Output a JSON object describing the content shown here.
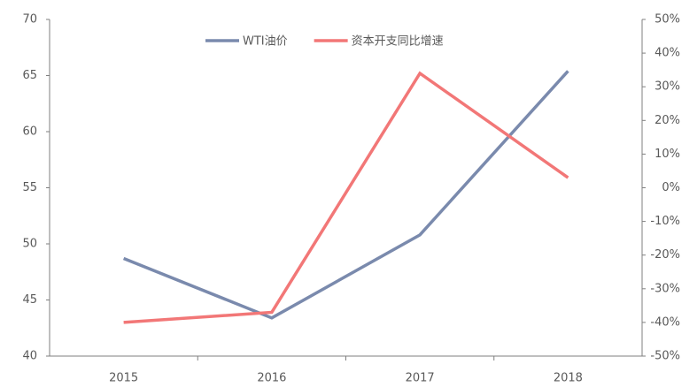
{
  "chart_data": {
    "type": "line",
    "categories": [
      "2015",
      "2016",
      "2017",
      "2018"
    ],
    "series": [
      {
        "name": "WTI油价",
        "color": "#7a8aad",
        "values": [
          48.7,
          43.4,
          50.8,
          65.4
        ]
      },
      {
        "name": "资本开支同比增速",
        "color": "#f27777",
        "axis": "y2",
        "values": [
          -40,
          -37,
          34,
          3
        ]
      }
    ],
    "ylim": [
      40,
      70
    ],
    "yticks": [
      40,
      45,
      50,
      55,
      60,
      65,
      70
    ],
    "y2lim": [
      -50,
      50
    ],
    "y2ticks": [
      {
        "value": -50,
        "label": "-50%"
      },
      {
        "value": -40,
        "label": "-40%"
      },
      {
        "value": -30,
        "label": "-30%"
      },
      {
        "value": -20,
        "label": "-20%"
      },
      {
        "value": -10,
        "label": "-10%"
      },
      {
        "value": 0,
        "label": "0%"
      },
      {
        "value": 10,
        "label": "10%"
      },
      {
        "value": 20,
        "label": "20%"
      },
      {
        "value": 30,
        "label": "30%"
      },
      {
        "value": 40,
        "label": "40%"
      },
      {
        "value": 50,
        "label": "50%"
      }
    ],
    "legend": "top"
  }
}
